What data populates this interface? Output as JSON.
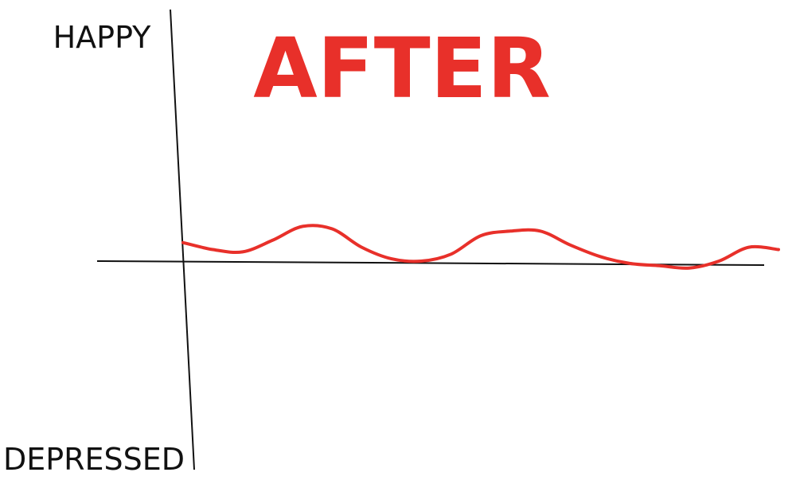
{
  "chart_data": {
    "type": "line",
    "title": "AFTER",
    "ylabel_top": "HAPPY",
    "ylabel_bottom": "DEPRESSED",
    "xlabel": "",
    "ylim": [
      -1,
      1
    ],
    "grid": false,
    "legend": "none",
    "series": [
      {
        "color": "#e8302a",
        "x": [
          0,
          0.05,
          0.1,
          0.15,
          0.2,
          0.25,
          0.3,
          0.35,
          0.4,
          0.45,
          0.5,
          0.55,
          0.6,
          0.65,
          0.7,
          0.75,
          0.8,
          0.85,
          0.9,
          0.95,
          1.0
        ],
        "y": [
          0.08,
          0.05,
          0.04,
          0.09,
          0.15,
          0.14,
          0.06,
          0.01,
          0.0,
          0.03,
          0.11,
          0.13,
          0.13,
          0.07,
          0.02,
          -0.01,
          -0.02,
          -0.03,
          0.0,
          0.06,
          0.05
        ]
      }
    ]
  },
  "colors": {
    "axis": "#111111",
    "line": "#e8302a",
    "title": "#e8302a"
  }
}
